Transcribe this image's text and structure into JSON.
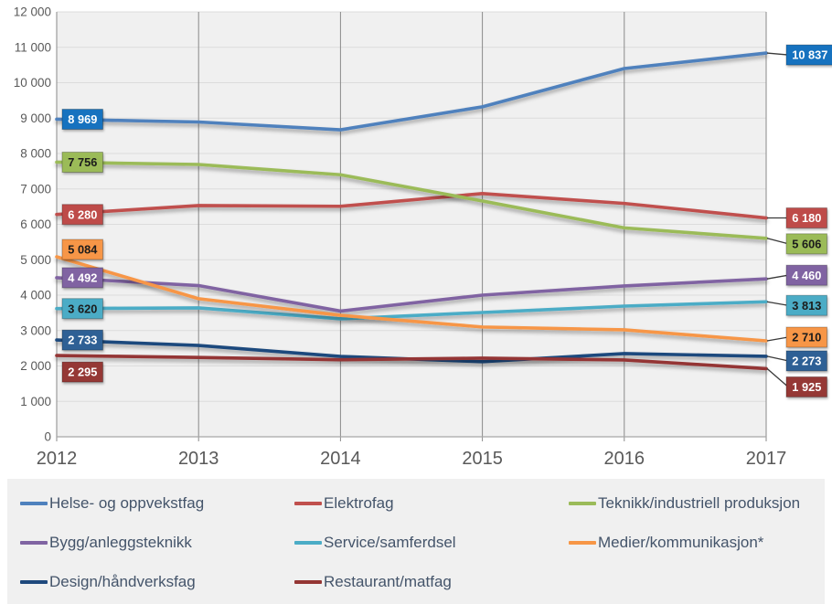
{
  "chart_data": {
    "type": "line",
    "title": "",
    "xlabel": "",
    "ylabel": "",
    "x_labels": [
      "2012",
      "2013",
      "2014",
      "2015",
      "2016",
      "2017"
    ],
    "y_axis": {
      "min": 0,
      "max": 12000,
      "tick_step": 1000,
      "tick_labels": [
        "0",
        "1 000",
        "2 000",
        "3 000",
        "4 000",
        "5 000",
        "6 000",
        "7 000",
        "8 000",
        "9 000",
        "10 000",
        "11 000",
        "12 000"
      ]
    },
    "grid": {
      "horizontal": true,
      "vertical": true
    },
    "legend_position": "bottom",
    "series": [
      {
        "name": "Helse- og oppvekstfag",
        "color": "#4F81BD",
        "label_box_color": "#1272BF",
        "label_text_color": "#FFFFFF",
        "values": [
          8969,
          8890,
          8670,
          9320,
          10400,
          10837
        ],
        "start_label": "8 969",
        "end_label": "10 837"
      },
      {
        "name": "Elektrofag",
        "color": "#C0504D",
        "label_box_color": "#BE4B48",
        "label_text_color": "#FFFFFF",
        "values": [
          6280,
          6530,
          6510,
          6870,
          6590,
          6180
        ],
        "start_label": "6 280",
        "end_label": "6 180"
      },
      {
        "name": "Teknikk/industriell produksjon",
        "color": "#9BBB59",
        "label_box_color": "#9BBB59",
        "label_text_color": "#1A1A1A",
        "values": [
          7756,
          7690,
          7400,
          6660,
          5900,
          5606
        ],
        "start_label": "7 756",
        "end_label": "5 606"
      },
      {
        "name": "Bygg/anleggsteknikk",
        "color": "#8064A2",
        "label_box_color": "#8064A2",
        "label_text_color": "#FFFFFF",
        "values": [
          4492,
          4270,
          3550,
          4000,
          4260,
          4460
        ],
        "start_label": "4 492",
        "end_label": "4 460"
      },
      {
        "name": "Service/samferdsel",
        "color": "#4BACC6",
        "label_box_color": "#4BACC6",
        "label_text_color": "#1A1A1A",
        "values": [
          3620,
          3640,
          3330,
          3510,
          3690,
          3813
        ],
        "start_label": "3 620",
        "end_label": "3 813"
      },
      {
        "name": "Medier/kommunikasjon*",
        "color": "#F79646",
        "label_box_color": "#F79646",
        "label_text_color": "#1A1A1A",
        "values": [
          5084,
          3900,
          3430,
          3100,
          3020,
          2710
        ],
        "start_label": "5 084",
        "end_label": "2 710"
      },
      {
        "name": "Design/håndverksfag",
        "color": "#1F497D",
        "label_box_color": "#2E6095",
        "label_text_color": "#FFFFFF",
        "values": [
          2733,
          2580,
          2270,
          2120,
          2350,
          2273
        ],
        "start_label": "2 733",
        "end_label": "2 273"
      },
      {
        "name": "Restaurant/matfag",
        "color": "#943634",
        "label_box_color": "#953735",
        "label_text_color": "#FFFFFF",
        "values": [
          2295,
          2240,
          2175,
          2220,
          2170,
          1925
        ],
        "start_label": "2 295",
        "end_label": "1 925"
      }
    ]
  },
  "colors": {
    "plot_bg": "#F0F0F0",
    "grid_horizontal": "#DCDCDC",
    "grid_vertical": "#8A8A8A",
    "axis_line": "#A6A6A6",
    "tick_text": "#595959",
    "leader_line": "#3A3A3A",
    "legend_bg": "#F0F0F0",
    "legend_text": "#44546A"
  }
}
